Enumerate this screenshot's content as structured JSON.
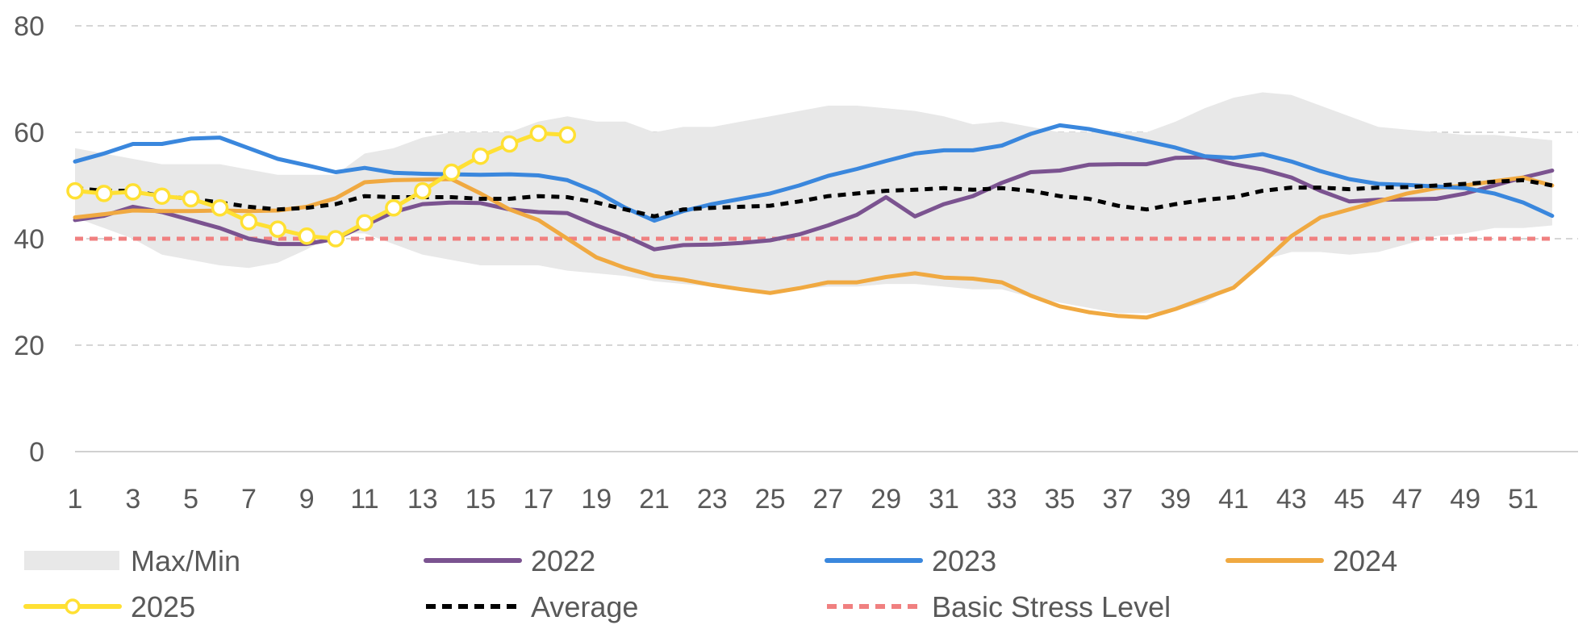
{
  "chart_data": {
    "type": "line",
    "title": "",
    "xlabel": "",
    "ylabel": "",
    "x": [
      1,
      2,
      3,
      4,
      5,
      6,
      7,
      8,
      9,
      10,
      11,
      12,
      13,
      14,
      15,
      16,
      17,
      18,
      19,
      20,
      21,
      22,
      23,
      24,
      25,
      26,
      27,
      28,
      29,
      30,
      31,
      32,
      33,
      34,
      35,
      36,
      37,
      38,
      39,
      40,
      41,
      42,
      43,
      44,
      45,
      46,
      47,
      48,
      49,
      50,
      51,
      52
    ],
    "x_tick_labels": [
      "1",
      "3",
      "5",
      "7",
      "9",
      "11",
      "13",
      "15",
      "17",
      "19",
      "21",
      "23",
      "25",
      "27",
      "29",
      "31",
      "33",
      "35",
      "37",
      "39",
      "41",
      "43",
      "45",
      "47",
      "49",
      "51"
    ],
    "ylim": [
      0,
      80
    ],
    "y_ticks": [
      0,
      20,
      40,
      60,
      80
    ],
    "grid": true,
    "legend_position": "bottom",
    "band": {
      "name": "Max/Min",
      "color": "#e8e8e8",
      "max": [
        57,
        56,
        55,
        54,
        54,
        54,
        53,
        52,
        52,
        52,
        56,
        57,
        59,
        60,
        60,
        60,
        62,
        63,
        62,
        62,
        60,
        61,
        61,
        62,
        63,
        64,
        65,
        65,
        64.5,
        64,
        63,
        61.5,
        62,
        61,
        60,
        60,
        60,
        60,
        62,
        64.5,
        66.5,
        67.5,
        67,
        65,
        63,
        61,
        60.5,
        60,
        59.5,
        59.5,
        59,
        58.5
      ],
      "min": [
        44,
        42,
        40,
        37,
        36,
        35,
        34.5,
        35.5,
        38,
        41,
        41,
        39,
        37,
        36,
        35,
        35,
        35,
        34,
        33.5,
        33,
        32,
        31.5,
        31,
        30.5,
        30,
        30.5,
        31,
        31,
        31.5,
        31.5,
        31,
        30.5,
        30.5,
        29,
        28,
        27,
        26,
        26,
        26.5,
        28,
        31,
        36,
        37.5,
        37.5,
        37,
        37.5,
        39,
        40.5,
        41,
        42,
        42,
        42.5
      ]
    },
    "series": [
      {
        "name": "2022",
        "color": "#7b5390",
        "dash": "solid",
        "marker": false,
        "values": [
          43.5,
          44.3,
          46,
          45,
          43.5,
          42,
          40,
          39,
          39,
          40,
          42.5,
          45,
          46.5,
          46.8,
          46.7,
          45.5,
          45,
          44.8,
          42.5,
          40.5,
          38,
          38.8,
          38.9,
          39.2,
          39.7,
          40.8,
          42.5,
          44.5,
          47.8,
          44.2,
          46.5,
          48,
          50.5,
          52.5,
          52.8,
          53.9,
          54,
          54,
          55.2,
          55.3,
          54,
          53,
          51.5,
          49,
          47,
          47.3,
          47.4,
          47.5,
          48.5,
          50,
          51.5,
          52.8
        ]
      },
      {
        "name": "2023",
        "color": "#3a87dd",
        "dash": "solid",
        "marker": false,
        "values": [
          54.5,
          56,
          57.8,
          57.8,
          58.8,
          59,
          57,
          55,
          53.8,
          52.5,
          53.3,
          52.4,
          52.2,
          52.1,
          52,
          52.1,
          51.9,
          51,
          48.8,
          45.8,
          43.4,
          45.2,
          46.5,
          47.5,
          48.5,
          50,
          51.8,
          53.1,
          54.6,
          56,
          56.6,
          56.6,
          57.5,
          59.7,
          61.3,
          60.6,
          59.5,
          58.3,
          57.1,
          55.5,
          55.2,
          55.9,
          54.5,
          52.7,
          51.2,
          50.3,
          50.1,
          49.8,
          49.5,
          48.5,
          46.8,
          44.3
        ]
      },
      {
        "name": "2024",
        "color": "#f0a941",
        "dash": "solid",
        "marker": false,
        "values": [
          44,
          44.6,
          45.3,
          45.2,
          45.2,
          45.3,
          45.2,
          45.3,
          46,
          47.6,
          50.6,
          51,
          51.1,
          51.2,
          48.5,
          45.5,
          43.5,
          40,
          36.5,
          34.5,
          33,
          32.3,
          31.3,
          30.5,
          29.8,
          30.7,
          31.8,
          31.8,
          32.8,
          33.5,
          32.7,
          32.5,
          31.8,
          29.3,
          27.3,
          26.2,
          25.5,
          25.2,
          26.8,
          28.8,
          30.8,
          35.5,
          40.5,
          44,
          45.5,
          47,
          48.5,
          49.5,
          50,
          50.8,
          51.5,
          50
        ]
      },
      {
        "name": "2025",
        "color": "#ffe033",
        "dash": "solid",
        "marker": true,
        "values": [
          49,
          48.5,
          48.8,
          48,
          47.5,
          45.8,
          43.2,
          41.8,
          40.5,
          40,
          43,
          45.8,
          49,
          52.5,
          55.5,
          57.8,
          59.8,
          59.5,
          null,
          null,
          null,
          null,
          null,
          null,
          null,
          null,
          null,
          null,
          null,
          null,
          null,
          null,
          null,
          null,
          null,
          null,
          null,
          null,
          null,
          null,
          null,
          null,
          null,
          null,
          null,
          null,
          null,
          null,
          null,
          null,
          null,
          null
        ]
      },
      {
        "name": "Average",
        "color": "#000000",
        "dash": "dash",
        "marker": false,
        "values": [
          49.5,
          49,
          49,
          48,
          47.5,
          46.8,
          46,
          45.5,
          45.8,
          46.5,
          48,
          47.8,
          47.8,
          47.8,
          47.5,
          47.5,
          48,
          47.8,
          46.8,
          45.5,
          44.2,
          45.5,
          45.8,
          46,
          46.2,
          47,
          48,
          48.5,
          49,
          49.2,
          49.5,
          49.2,
          49.5,
          49,
          48,
          47.5,
          46.2,
          45.5,
          46.5,
          47.3,
          47.8,
          49,
          49.6,
          49.6,
          49.3,
          49.6,
          49.7,
          50,
          50.3,
          50.7,
          51,
          50
        ]
      },
      {
        "name": "Basic Stress Level",
        "color": "#f08080",
        "dash": "dash",
        "marker": false,
        "values": [
          40,
          40,
          40,
          40,
          40,
          40,
          40,
          40,
          40,
          40,
          40,
          40,
          40,
          40,
          40,
          40,
          40,
          40,
          40,
          40,
          40,
          40,
          40,
          40,
          40,
          40,
          40,
          40,
          40,
          40,
          40,
          40,
          40,
          40,
          40,
          40,
          40,
          40,
          40,
          40,
          40,
          40,
          40,
          40,
          40,
          40,
          40,
          40,
          40,
          40,
          40,
          40
        ]
      }
    ]
  },
  "legend": {
    "items": [
      {
        "label": "Max/Min",
        "kind": "band"
      },
      {
        "label": "2022",
        "kind": "line"
      },
      {
        "label": "2023",
        "kind": "line"
      },
      {
        "label": "2024",
        "kind": "line"
      },
      {
        "label": "2025",
        "kind": "line-marker"
      },
      {
        "label": "Average",
        "kind": "dash"
      },
      {
        "label": "Basic Stress Level",
        "kind": "dash"
      }
    ]
  }
}
